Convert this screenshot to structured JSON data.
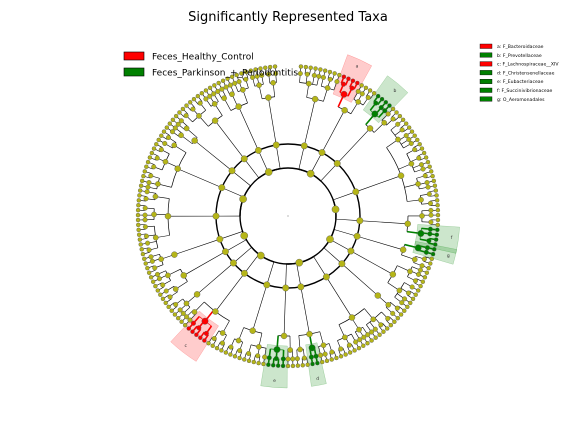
{
  "chart_data": {
    "type": "cladogram",
    "title": "Significantly Represented Taxa",
    "legend": {
      "placement": "top-left",
      "groups": [
        {
          "name": "Feces_Healthy_Control",
          "color": "#ff0000"
        },
        {
          "name": "Feces_Parkinson_+_Periodontitis",
          "color": "#008000"
        }
      ]
    },
    "clade_key": {
      "placement": "top-right",
      "entries": [
        {
          "letter": "a",
          "label": "a: F_Bacteroidaceae",
          "group": "Feces_Healthy_Control",
          "color": "#ff0000"
        },
        {
          "letter": "b",
          "label": "b: F_Prevotellaceae",
          "group": "Feces_Parkinson_+_Periodontitis",
          "color": "#008000"
        },
        {
          "letter": "c",
          "label": "c: F_Lachnospiraceae__XIV",
          "group": "Feces_Healthy_Control",
          "color": "#ff0000"
        },
        {
          "letter": "d",
          "label": "d: F_Christensenellaceae",
          "group": "Feces_Parkinson_+_Periodontitis",
          "color": "#008000"
        },
        {
          "letter": "e",
          "label": "e: F_Eubacteriaceae",
          "group": "Feces_Parkinson_+_Periodontitis",
          "color": "#008000"
        },
        {
          "letter": "f",
          "label": "f: F_Succinivibrionaceae",
          "group": "Feces_Parkinson_+_Periodontitis",
          "color": "#008000"
        },
        {
          "letter": "g",
          "label": "g: O_Aeromonadales",
          "group": "Feces_Parkinson_+_Periodontitis",
          "color": "#008000"
        }
      ]
    },
    "colors": {
      "non_significant": "#b5b518",
      "branch": "#000000"
    },
    "rings": 6
  }
}
